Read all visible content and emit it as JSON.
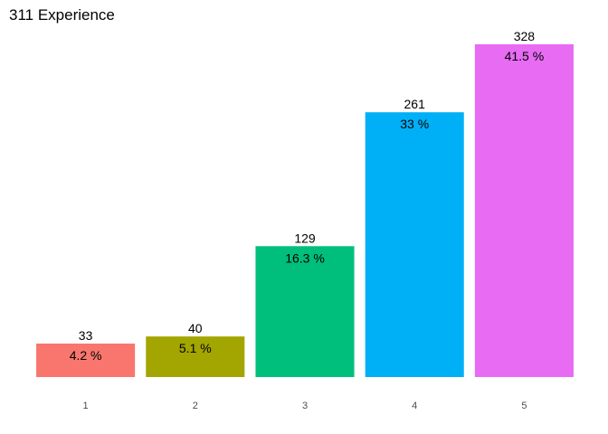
{
  "chart_data": {
    "type": "bar",
    "title": "311 Experience",
    "xlabel": "",
    "ylabel": "",
    "categories": [
      "1",
      "2",
      "3",
      "4",
      "5"
    ],
    "values": [
      33,
      40,
      129,
      261,
      328
    ],
    "percent_labels": [
      "4.2 %",
      "5.1 %",
      "16.3 %",
      "33 %",
      "41.5 %"
    ],
    "colors": [
      "#F8766D",
      "#A3A500",
      "#00BF7D",
      "#00B0F6",
      "#E76BF3"
    ],
    "ylim": [
      0,
      328
    ],
    "grid": false,
    "legend": "none"
  }
}
